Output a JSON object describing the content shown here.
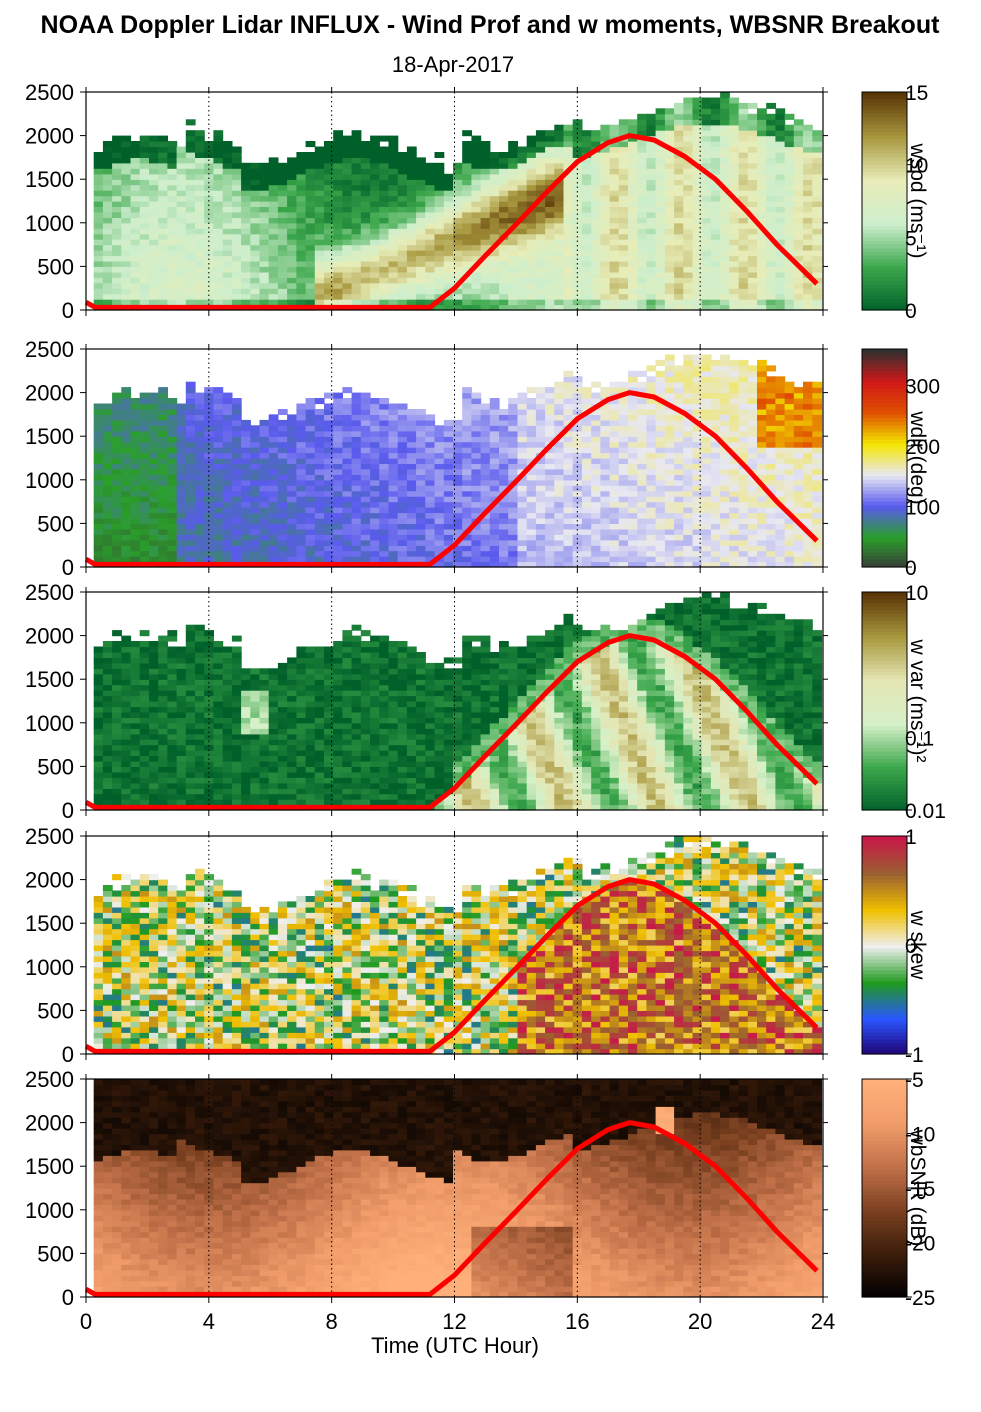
{
  "title": "NOAA Doppler Lidar INFLUX - Wind Prof and w moments, WBSNR Breakout",
  "subtitle": "18-Apr-2017",
  "chart_data": {
    "type": "heatmap",
    "xlabel": "Time (UTC Hour)",
    "xlim": [
      0,
      24
    ],
    "x_ticks": [
      "0",
      "4",
      "8",
      "12",
      "16",
      "20",
      "24"
    ],
    "ylim": [
      0,
      2500
    ],
    "y_ticks": [
      "0",
      "500",
      "1000",
      "1500",
      "2000",
      "2500"
    ],
    "dotted_vertical_lines_at": [
      4,
      8,
      12,
      16,
      20
    ],
    "boundary_layer_line": {
      "color": "#ff0000",
      "x": [
        0,
        0.3,
        11.2,
        12,
        13,
        14,
        15,
        16,
        17,
        17.7,
        18.5,
        19.5,
        20.5,
        21.5,
        22.5,
        23.8
      ],
      "y": [
        90,
        30,
        30,
        250,
        620,
        980,
        1350,
        1700,
        1920,
        2000,
        1950,
        1760,
        1500,
        1140,
        750,
        300
      ]
    },
    "panels": [
      {
        "label": "wspd (ms⁻¹)",
        "colorbar_ticks": [
          "15",
          "10",
          "5",
          "0"
        ],
        "colorbar_range": [
          0,
          15
        ],
        "colors": [
          "#00602a",
          "#3aa64a",
          "#cdeecd",
          "#e8edb8",
          "#a8983e",
          "#5a3506"
        ]
      },
      {
        "label": "wdir (deg)",
        "colorbar_ticks": [
          "300",
          "200",
          "100",
          "0"
        ],
        "colorbar_range": [
          0,
          360
        ],
        "colors": [
          "#3a3a3a",
          "#2aa02a",
          "#5a5aee",
          "#e8e8f2",
          "#f4e600",
          "#e05000",
          "#d01818",
          "#303030"
        ]
      },
      {
        "label": "w var (ms⁻¹)²",
        "colorbar_ticks": [
          "10",
          "0.1",
          "0.01"
        ],
        "colorbar_range": [
          0.01,
          10
        ],
        "colorbar_scale": "log",
        "colors": [
          "#00602a",
          "#3aa64a",
          "#d6f0c8",
          "#e4e6b4",
          "#a8983e",
          "#5a3506"
        ]
      },
      {
        "label": "w skew",
        "colorbar_ticks": [
          "1",
          "0",
          "-1"
        ],
        "colorbar_range": [
          -1,
          1
        ],
        "colors": [
          "#200070",
          "#2a56ff",
          "#1f9a1f",
          "#efefef",
          "#f0c000",
          "#9a6030",
          "#c8184a"
        ]
      },
      {
        "label": "wbSNR (dB)",
        "colorbar_ticks": [
          "-5",
          "-10",
          "-15",
          "-20",
          "-25"
        ],
        "colorbar_range": [
          -25,
          -5
        ],
        "colors": [
          "#000000",
          "#3a1c0a",
          "#7a4020",
          "#c07048",
          "#f09c6a",
          "#ffb07a"
        ]
      }
    ]
  }
}
